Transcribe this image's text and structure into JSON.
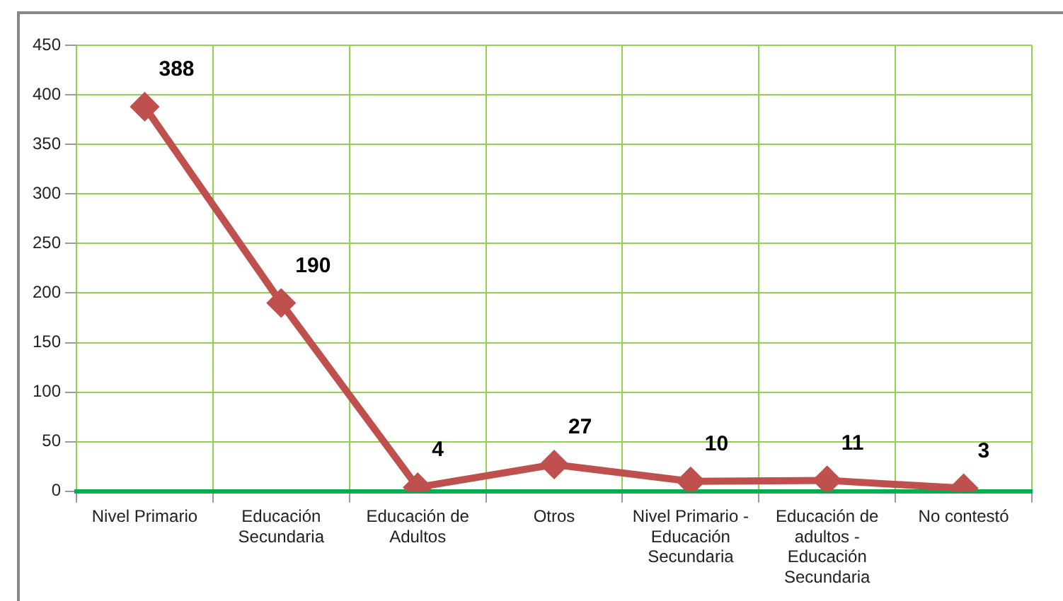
{
  "chart_data": {
    "type": "line",
    "categories": [
      "Nivel Primario",
      "Educación Secundaria",
      "Educación de Adultos",
      "Otros",
      "Nivel Primario - Educación Secundaria",
      "Educación de adultos - Educación Secundaria",
      "No contestó"
    ],
    "series": [
      {
        "color": "#c0504d",
        "values": [
          388,
          190,
          4,
          27,
          10,
          11,
          3
        ]
      }
    ],
    "ylim": [
      0,
      450
    ],
    "yticks": [
      0,
      50,
      100,
      150,
      200,
      250,
      300,
      350,
      400,
      450
    ],
    "grid": true,
    "marker": "diamond",
    "line_style": "solid",
    "data_labels": true
  }
}
